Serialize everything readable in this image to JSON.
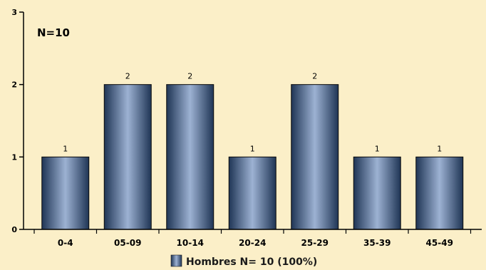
{
  "chart_data": {
    "type": "bar",
    "annotation": "N=10",
    "categories": [
      "0-4",
      "05-09",
      "10-14",
      "20-24",
      "25-29",
      "35-39",
      "45-49"
    ],
    "series": [
      {
        "name": "Hombres N= 10 (100%)",
        "values": [
          1,
          2,
          2,
          1,
          2,
          1,
          1
        ]
      }
    ],
    "data_labels": [
      "1",
      "2",
      "2",
      "1",
      "2",
      "1",
      "1"
    ],
    "ylim": [
      0,
      3
    ],
    "yticks": [
      "0",
      "1",
      "2",
      "3"
    ],
    "grid": false,
    "legend_position": "bottom",
    "colors": {
      "background": "#fbefc8",
      "bar_dark": "#1f3555",
      "bar_light": "#9db2d3",
      "axis": "#000000"
    }
  }
}
